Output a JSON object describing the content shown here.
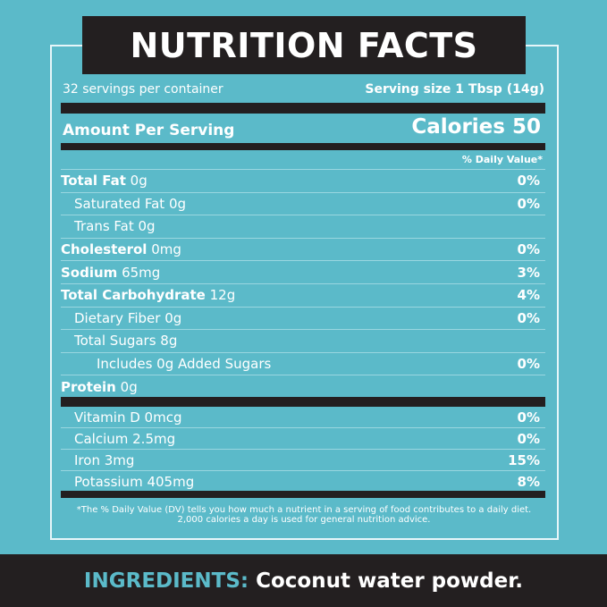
{
  "title": "NUTRITION FACTS",
  "servings": "32 servings per container",
  "serving_size": "Serving size 1 Tbsp (14g)",
  "amount_per_serving": "Amount Per Serving",
  "calories": "Calories 50",
  "dv_header": "% Daily Value*",
  "nutrients": [
    {
      "name": "Total Fat",
      "amount": "0g",
      "dv": "0%",
      "bold": true,
      "indent": 0
    },
    {
      "name": "Saturated Fat 0g",
      "amount": "",
      "dv": "0%",
      "bold": false,
      "indent": 1
    },
    {
      "name": "Trans Fat 0g",
      "amount": "",
      "dv": "",
      "bold": false,
      "indent": 1
    },
    {
      "name": "Cholesterol",
      "amount": "0mg",
      "dv": "0%",
      "bold": true,
      "indent": 0
    },
    {
      "name": "Sodium",
      "amount": "65mg",
      "dv": "3%",
      "bold": true,
      "indent": 0
    },
    {
      "name": "Total Carbohydrate",
      "amount": "12g",
      "dv": "4%",
      "bold": true,
      "indent": 0
    },
    {
      "name": "Dietary Fiber 0g",
      "amount": "",
      "dv": "0%",
      "bold": false,
      "indent": 1
    },
    {
      "name": "Total Sugars 8g",
      "amount": "",
      "dv": "",
      "bold": false,
      "indent": 1
    },
    {
      "name": "Includes 0g Added Sugars",
      "amount": "",
      "dv": "0%",
      "bold": false,
      "indent": 2
    },
    {
      "name": "Protein",
      "amount": "0g",
      "dv": "",
      "bold": true,
      "indent": 0
    }
  ],
  "vitamins": [
    {
      "name": "Vitamin D 0mcg",
      "dv": "0%"
    },
    {
      "name": "Calcium 2.5mg",
      "dv": "0%"
    },
    {
      "name": "Iron 3mg",
      "dv": "15%"
    },
    {
      "name": "Potassium 405mg",
      "dv": "8%"
    }
  ],
  "footnote": "*The % Daily Value (DV) tells you how much a nutrient in a serving of food contributes to a daily diet. 2,000 calories a day is used for general nutrition advice.",
  "ingredients": {
    "label": "INGREDIENTS:",
    "text": "Coconut water powder."
  },
  "colors": {
    "teal": "#5bbac9",
    "dark": "#231f20"
  }
}
